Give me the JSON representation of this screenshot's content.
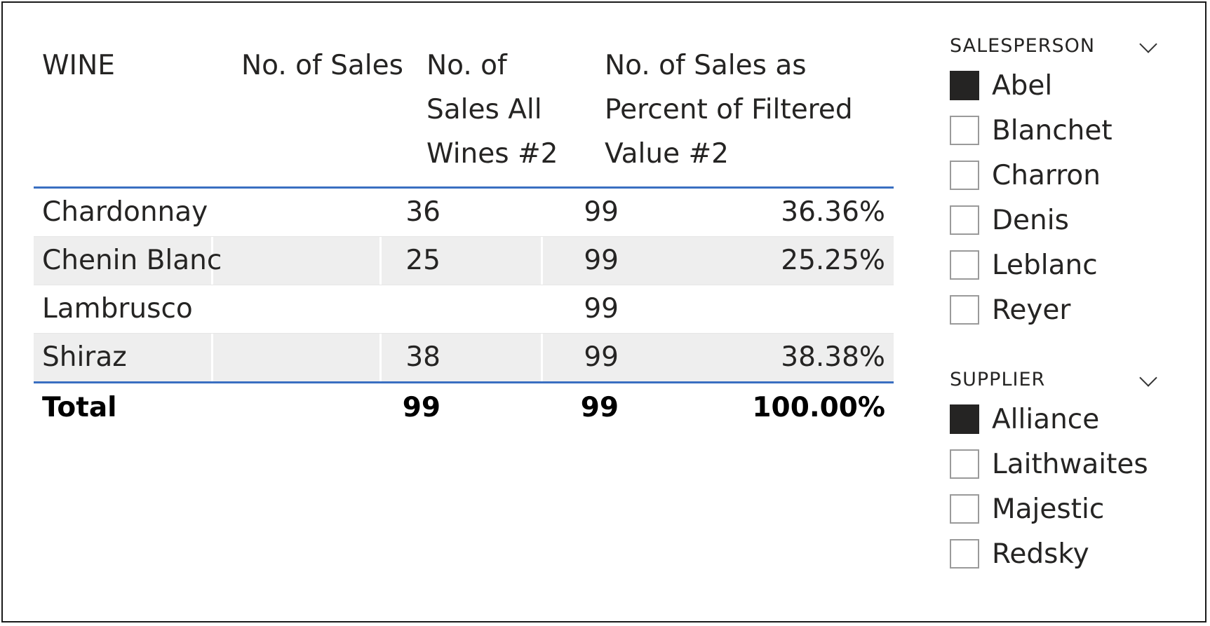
{
  "table": {
    "headers": {
      "wine": "WINE",
      "sales": "No. of Sales",
      "all_wines": [
        "No. of",
        "Sales All",
        "Wines #2"
      ],
      "percent": [
        "No. of Sales as",
        "Percent of Filtered",
        "Value #2"
      ]
    },
    "rows": [
      {
        "wine": "Chardonnay",
        "sales": "36",
        "all_wines": "99",
        "percent": "36.36%"
      },
      {
        "wine": "Chenin Blanc",
        "sales": "25",
        "all_wines": "99",
        "percent": "25.25%"
      },
      {
        "wine": "Lambrusco",
        "sales": "",
        "all_wines": "99",
        "percent": ""
      },
      {
        "wine": "Shiraz",
        "sales": "38",
        "all_wines": "99",
        "percent": "38.38%"
      }
    ],
    "total": {
      "label": "Total",
      "sales": "99",
      "all_wines": "99",
      "percent": "100.00%"
    }
  },
  "slicers": {
    "salesperson": {
      "title": "SALESPERSON",
      "items": [
        {
          "label": "Abel",
          "checked": true
        },
        {
          "label": "Blanchet",
          "checked": false
        },
        {
          "label": "Charron",
          "checked": false
        },
        {
          "label": "Denis",
          "checked": false
        },
        {
          "label": "Leblanc",
          "checked": false
        },
        {
          "label": "Reyer",
          "checked": false
        }
      ]
    },
    "supplier": {
      "title": "SUPPLIER",
      "items": [
        {
          "label": "Alliance",
          "checked": true
        },
        {
          "label": "Laithwaites",
          "checked": false
        },
        {
          "label": "Majestic",
          "checked": false
        },
        {
          "label": "Redsky",
          "checked": false
        }
      ]
    }
  },
  "colors": {
    "accent_line": "#3a6fc1",
    "row_shade": "#eeeeee",
    "checkbox_checked": "#252423"
  },
  "icons": {
    "dropdown": "chevron-down-icon"
  }
}
